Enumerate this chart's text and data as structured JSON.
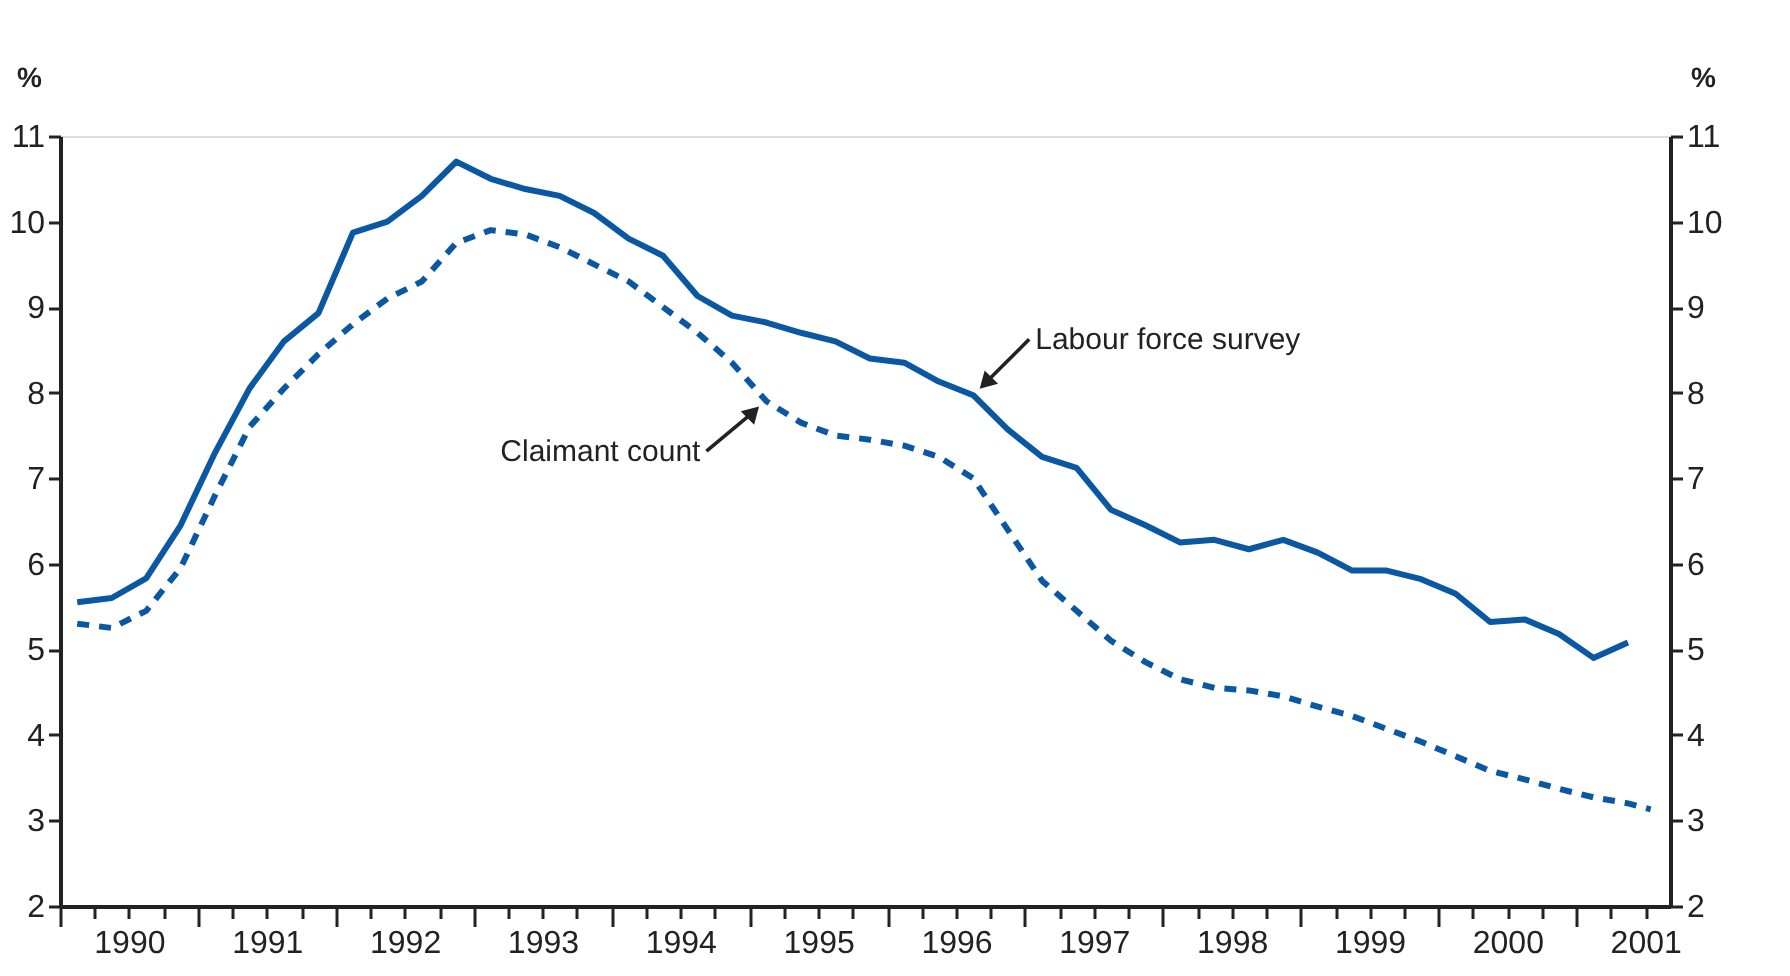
{
  "chart_data": {
    "type": "line",
    "x": [
      1990.125,
      1990.375,
      1990.625,
      1990.875,
      1991.125,
      1991.375,
      1991.625,
      1991.875,
      1992.125,
      1992.375,
      1992.625,
      1992.875,
      1993.125,
      1993.375,
      1993.625,
      1993.875,
      1994.125,
      1994.375,
      1994.625,
      1994.875,
      1995.125,
      1995.375,
      1995.625,
      1995.875,
      1996.125,
      1996.375,
      1996.625,
      1996.875,
      1997.125,
      1997.375,
      1997.625,
      1997.875,
      1998.125,
      1998.375,
      1998.625,
      1998.875,
      1999.125,
      1999.375,
      1999.625,
      1999.875,
      2000.125,
      2000.375,
      2000.625,
      2000.875,
      2001.125,
      2001.375
    ],
    "series": [
      {
        "color": "#0a57a4",
        "line_style": "solid",
        "values": [
          5.55,
          5.6,
          5.83,
          6.45,
          7.3,
          8.05,
          8.6,
          8.93,
          9.87,
          10.0,
          10.3,
          10.7,
          10.5,
          10.38,
          10.3,
          10.1,
          9.8,
          9.6,
          9.13,
          8.9,
          8.82,
          8.7,
          8.6,
          8.4,
          8.35,
          8.13,
          7.97,
          7.57,
          7.25,
          7.12,
          6.63,
          6.45,
          6.25,
          6.28,
          6.17,
          6.28,
          6.13,
          5.92,
          5.92,
          5.82,
          5.65,
          5.32,
          5.35,
          5.18,
          4.9,
          5.08
        ]
      },
      {
        "color": "#0a57a4",
        "line_style": "dashed",
        "x": [
          1990.125,
          1990.375,
          1990.625,
          1990.875,
          1991.125,
          1991.375,
          1991.625,
          1991.875,
          1992.125,
          1992.375,
          1992.625,
          1992.875,
          1993.125,
          1993.375,
          1993.625,
          1993.875,
          1994.125,
          1994.375,
          1994.625,
          1994.875,
          1995.125,
          1995.375,
          1995.625,
          1995.875,
          1996.125,
          1996.375,
          1996.625,
          1996.875,
          1997.125,
          1997.375,
          1997.625,
          1997.875,
          1998.125,
          1998.375,
          1998.625,
          1998.875,
          1999.125,
          1999.375,
          1999.625,
          1999.875,
          2000.125,
          2000.375,
          2000.625,
          2000.875,
          2001.125,
          2001.375,
          2001.54
        ],
        "values": [
          5.3,
          5.25,
          5.45,
          5.95,
          6.8,
          7.6,
          8.05,
          8.45,
          8.8,
          9.1,
          9.3,
          9.75,
          9.9,
          9.85,
          9.7,
          9.5,
          9.3,
          9.0,
          8.7,
          8.35,
          7.9,
          7.65,
          7.5,
          7.45,
          7.38,
          7.25,
          7.0,
          6.4,
          5.8,
          5.45,
          5.1,
          4.85,
          4.65,
          4.55,
          4.52,
          4.45,
          4.33,
          4.22,
          4.07,
          3.92,
          3.75,
          3.58,
          3.48,
          3.37,
          3.27,
          3.2,
          3.13
        ]
      }
    ],
    "ylabel": "%",
    "y2label": "%",
    "ylim": [
      2,
      11
    ],
    "yticks": [
      2,
      3,
      4,
      5,
      6,
      7,
      8,
      9,
      10,
      11
    ],
    "y2lim": [
      2,
      11
    ],
    "y2ticks": [
      2,
      3,
      4,
      5,
      6,
      7,
      8,
      9,
      10,
      11
    ],
    "xlim": [
      1990,
      2001.68
    ],
    "xticks": [
      {
        "value": 1990,
        "label": null
      },
      {
        "value": 1990.25,
        "label": null
      },
      {
        "value": 1990.5,
        "label": "1990"
      },
      {
        "value": 1990.75,
        "label": null
      },
      {
        "value": 1991,
        "label": null
      },
      {
        "value": 1991.25,
        "label": null
      },
      {
        "value": 1991.5,
        "label": "1991"
      },
      {
        "value": 1991.75,
        "label": null
      },
      {
        "value": 1992,
        "label": null
      },
      {
        "value": 1992.25,
        "label": null
      },
      {
        "value": 1992.5,
        "label": "1992"
      },
      {
        "value": 1992.75,
        "label": null
      },
      {
        "value": 1993,
        "label": null
      },
      {
        "value": 1993.25,
        "label": null
      },
      {
        "value": 1993.5,
        "label": "1993"
      },
      {
        "value": 1993.75,
        "label": null
      },
      {
        "value": 1994,
        "label": null
      },
      {
        "value": 1994.25,
        "label": null
      },
      {
        "value": 1994.5,
        "label": "1994"
      },
      {
        "value": 1994.75,
        "label": null
      },
      {
        "value": 1995,
        "label": null
      },
      {
        "value": 1995.25,
        "label": null
      },
      {
        "value": 1995.5,
        "label": "1995"
      },
      {
        "value": 1995.75,
        "label": null
      },
      {
        "value": 1996,
        "label": null
      },
      {
        "value": 1996.25,
        "label": null
      },
      {
        "value": 1996.5,
        "label": "1996"
      },
      {
        "value": 1996.75,
        "label": null
      },
      {
        "value": 1997,
        "label": null
      },
      {
        "value": 1997.25,
        "label": null
      },
      {
        "value": 1997.5,
        "label": "1997"
      },
      {
        "value": 1997.75,
        "label": null
      },
      {
        "value": 1998,
        "label": null
      },
      {
        "value": 1998.25,
        "label": null
      },
      {
        "value": 1998.5,
        "label": "1998"
      },
      {
        "value": 1998.75,
        "label": null
      },
      {
        "value": 1999,
        "label": null
      },
      {
        "value": 1999.25,
        "label": null
      },
      {
        "value": 1999.5,
        "label": "1999"
      },
      {
        "value": 1999.75,
        "label": null
      },
      {
        "value": 2000,
        "label": null
      },
      {
        "value": 2000.25,
        "label": null
      },
      {
        "value": 2000.5,
        "label": "2000"
      },
      {
        "value": 2000.75,
        "label": null
      },
      {
        "value": 2001,
        "label": null
      },
      {
        "value": 2001.25,
        "label": null
      },
      {
        "value": 2001.5,
        "label": "2001"
      }
    ],
    "annotations": [
      {
        "text": "Labour force survey",
        "x": 1996.625,
        "y": 7.97
      },
      {
        "text": "Claimant count",
        "x": 1995.125,
        "y": 7.9
      }
    ],
    "grid": false,
    "marker": "none"
  }
}
